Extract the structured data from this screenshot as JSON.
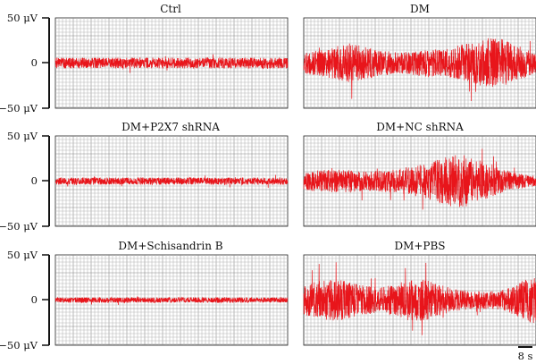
{
  "chart_data": [
    {
      "type": "line",
      "title": "Ctrl",
      "y_tick_labels": [
        "50 μV",
        "0",
        "−50 μV"
      ],
      "y_ticks": [
        50,
        0,
        -50
      ],
      "ylim": [
        -50,
        50
      ],
      "grid": true,
      "series": [
        {
          "color": "#e8151b",
          "envelope": [
            6,
            6,
            6,
            6,
            6,
            6,
            6,
            6,
            6,
            6,
            6,
            6,
            6,
            6,
            6,
            6
          ]
        }
      ]
    },
    {
      "type": "line",
      "title": "DM",
      "ylim": [
        -50,
        50
      ],
      "grid": true,
      "series": [
        {
          "color": "#e8151b",
          "envelope": [
            12,
            14,
            18,
            22,
            18,
            14,
            12,
            13,
            16,
            14,
            20,
            24,
            28,
            26,
            18,
            12
          ]
        }
      ]
    },
    {
      "type": "line",
      "title": "DM+P2X7 shRNA",
      "y_tick_labels": [
        "50 μV",
        "0",
        "−50 μV"
      ],
      "y_ticks": [
        50,
        0,
        -50
      ],
      "ylim": [
        -50,
        50
      ],
      "grid": true,
      "series": [
        {
          "color": "#e8151b",
          "envelope": [
            4,
            4,
            4,
            4,
            4,
            4,
            4,
            4,
            4,
            4,
            4,
            4,
            4,
            4,
            4,
            4
          ]
        }
      ]
    },
    {
      "type": "line",
      "title": "DM+NC shRNA",
      "ylim": [
        -50,
        50
      ],
      "grid": true,
      "series": [
        {
          "color": "#e8151b",
          "envelope": [
            10,
            12,
            13,
            12,
            11,
            12,
            14,
            16,
            20,
            26,
            30,
            26,
            18,
            12,
            8,
            6
          ]
        }
      ]
    },
    {
      "type": "line",
      "title": "DM+Schisandrin B",
      "y_tick_labels": [
        "50 μV",
        "0",
        "−50 μV"
      ],
      "y_ticks": [
        50,
        0,
        -50
      ],
      "ylim": [
        -50,
        50
      ],
      "grid": true,
      "series": [
        {
          "color": "#e8151b",
          "envelope": [
            3,
            3,
            3,
            3,
            3,
            3,
            3,
            3,
            3,
            3,
            3,
            3,
            3,
            3,
            3,
            3
          ]
        }
      ]
    },
    {
      "type": "line",
      "title": "DM+PBS",
      "ylim": [
        -50,
        50
      ],
      "grid": true,
      "series": [
        {
          "color": "#e8151b",
          "envelope": [
            16,
            22,
            24,
            20,
            16,
            14,
            18,
            24,
            22,
            16,
            12,
            10,
            10,
            12,
            20,
            28
          ]
        }
      ]
    }
  ],
  "scale_bar": {
    "label": "8 s",
    "seconds": 8
  }
}
